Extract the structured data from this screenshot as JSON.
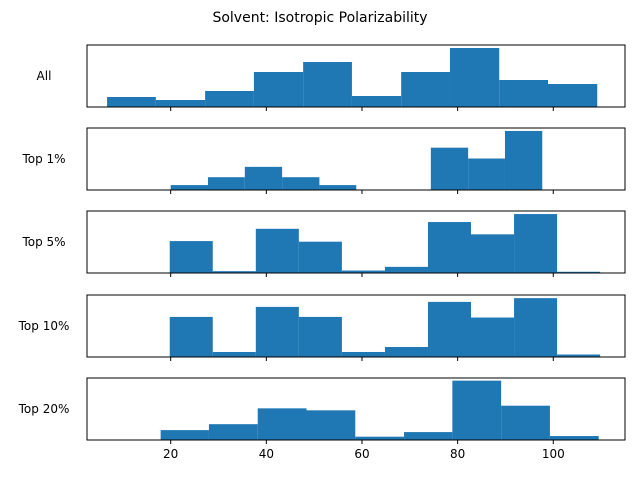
{
  "chart_data": {
    "type": "bar",
    "title": "Solvent: Isotropic Polarizability",
    "xticks": [
      20,
      40,
      60,
      80,
      100
    ],
    "xlim": [
      2.5,
      115
    ],
    "color": "#1f77b4",
    "panels": [
      {
        "label": "All",
        "bins": [
          {
            "start": 6.7,
            "end": 16.9,
            "value": 1.0
          },
          {
            "start": 16.9,
            "end": 27.2,
            "value": 0.7
          },
          {
            "start": 27.2,
            "end": 37.4,
            "value": 1.6
          },
          {
            "start": 37.4,
            "end": 47.7,
            "value": 3.5
          },
          {
            "start": 47.7,
            "end": 57.9,
            "value": 4.5
          },
          {
            "start": 57.9,
            "end": 68.2,
            "value": 1.1
          },
          {
            "start": 68.2,
            "end": 78.4,
            "value": 3.5
          },
          {
            "start": 78.4,
            "end": 88.7,
            "value": 5.9
          },
          {
            "start": 88.7,
            "end": 98.9,
            "value": 2.7
          },
          {
            "start": 98.9,
            "end": 109.2,
            "value": 2.3
          }
        ],
        "ymax": 6.2
      },
      {
        "label": "Top 1%",
        "bins": [
          {
            "start": 20.0,
            "end": 27.8,
            "value": 1.0
          },
          {
            "start": 27.8,
            "end": 35.5,
            "value": 2.6
          },
          {
            "start": 35.5,
            "end": 43.3,
            "value": 4.7
          },
          {
            "start": 43.3,
            "end": 51.1,
            "value": 2.6
          },
          {
            "start": 51.1,
            "end": 58.8,
            "value": 1.0
          },
          {
            "start": 58.8,
            "end": 66.6,
            "value": 0
          },
          {
            "start": 66.6,
            "end": 74.4,
            "value": 0
          },
          {
            "start": 74.4,
            "end": 82.2,
            "value": 8.6
          },
          {
            "start": 82.2,
            "end": 89.9,
            "value": 6.4
          },
          {
            "start": 89.9,
            "end": 97.7,
            "value": 12.0
          }
        ],
        "ymax": 12.6
      },
      {
        "label": "Top 5%",
        "bins": [
          {
            "start": 19.8,
            "end": 28.8,
            "value": 5.2
          },
          {
            "start": 28.8,
            "end": 37.8,
            "value": 0.3
          },
          {
            "start": 37.8,
            "end": 46.8,
            "value": 7.2
          },
          {
            "start": 46.8,
            "end": 55.8,
            "value": 5.1
          },
          {
            "start": 55.8,
            "end": 64.8,
            "value": 0.4
          },
          {
            "start": 64.8,
            "end": 73.8,
            "value": 1.0
          },
          {
            "start": 73.8,
            "end": 82.8,
            "value": 8.3
          },
          {
            "start": 82.8,
            "end": 91.8,
            "value": 6.3
          },
          {
            "start": 91.8,
            "end": 100.8,
            "value": 9.6
          },
          {
            "start": 100.8,
            "end": 109.8,
            "value": 0.2
          }
        ],
        "ymax": 10.1
      },
      {
        "label": "Top 10%",
        "bins": [
          {
            "start": 19.8,
            "end": 28.8,
            "value": 6.4
          },
          {
            "start": 28.8,
            "end": 37.8,
            "value": 0.8
          },
          {
            "start": 37.8,
            "end": 46.8,
            "value": 8.0
          },
          {
            "start": 46.8,
            "end": 55.8,
            "value": 6.4
          },
          {
            "start": 55.8,
            "end": 64.8,
            "value": 0.8
          },
          {
            "start": 64.8,
            "end": 73.8,
            "value": 1.6
          },
          {
            "start": 73.8,
            "end": 82.8,
            "value": 8.8
          },
          {
            "start": 82.8,
            "end": 91.8,
            "value": 6.3
          },
          {
            "start": 91.8,
            "end": 100.8,
            "value": 9.4
          },
          {
            "start": 100.8,
            "end": 109.8,
            "value": 0.4
          }
        ],
        "ymax": 9.9
      },
      {
        "label": "Top 20%",
        "bins": [
          {
            "start": 17.9,
            "end": 28.0,
            "value": 1.5
          },
          {
            "start": 28.0,
            "end": 38.2,
            "value": 2.4
          },
          {
            "start": 38.2,
            "end": 48.4,
            "value": 4.8
          },
          {
            "start": 48.4,
            "end": 58.6,
            "value": 4.5
          },
          {
            "start": 58.6,
            "end": 68.8,
            "value": 0.5
          },
          {
            "start": 68.8,
            "end": 78.9,
            "value": 1.2
          },
          {
            "start": 78.9,
            "end": 89.1,
            "value": 9.0
          },
          {
            "start": 89.1,
            "end": 99.3,
            "value": 5.2
          },
          {
            "start": 99.3,
            "end": 109.5,
            "value": 0.6
          }
        ],
        "ymax": 9.4
      }
    ]
  }
}
